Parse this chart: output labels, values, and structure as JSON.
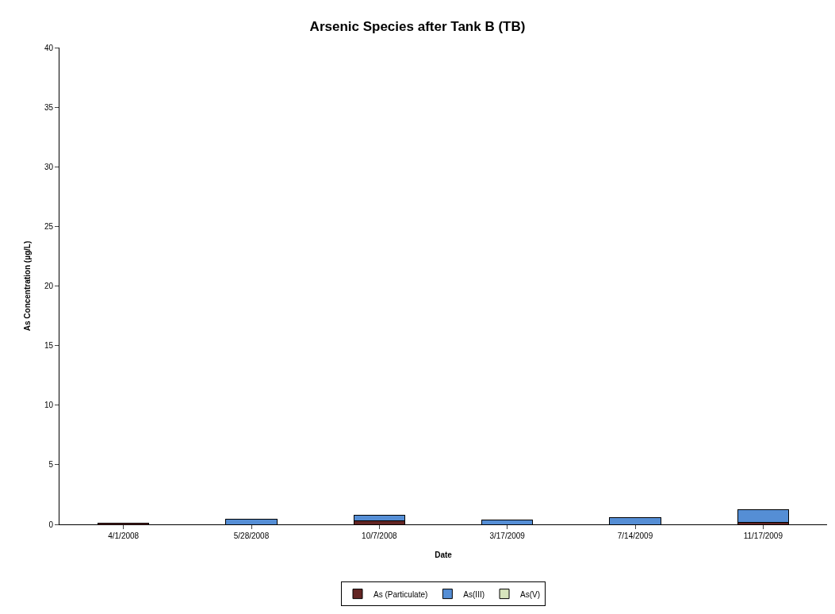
{
  "chart_data": {
    "type": "bar",
    "title": "Arsenic Species after Tank B (TB)",
    "xlabel": "Date",
    "ylabel": "As Concentration (µg/L)",
    "categories": [
      "4/1/2008",
      "5/28/2008",
      "10/7/2008",
      "3/17/2009",
      "7/14/2009",
      "11/17/2009"
    ],
    "series": [
      {
        "name": "As (Particulate)",
        "color": "#632523",
        "values": [
          0.1,
          null,
          0.3,
          null,
          null,
          0.2
        ]
      },
      {
        "name": "As(III)",
        "color": "#558ed5",
        "values": [
          null,
          0.44,
          0.48,
          0.37,
          0.56,
          1.0
        ]
      },
      {
        "name": "As(V)",
        "color": "#d7e4bd",
        "values": [
          null,
          null,
          null,
          null,
          null,
          null
        ]
      }
    ],
    "stacked": true,
    "ylim": [
      0,
      40
    ],
    "yticks": [
      0,
      5,
      10,
      15,
      20,
      25,
      30,
      35,
      40
    ],
    "grid": false,
    "legend": "bottom"
  }
}
